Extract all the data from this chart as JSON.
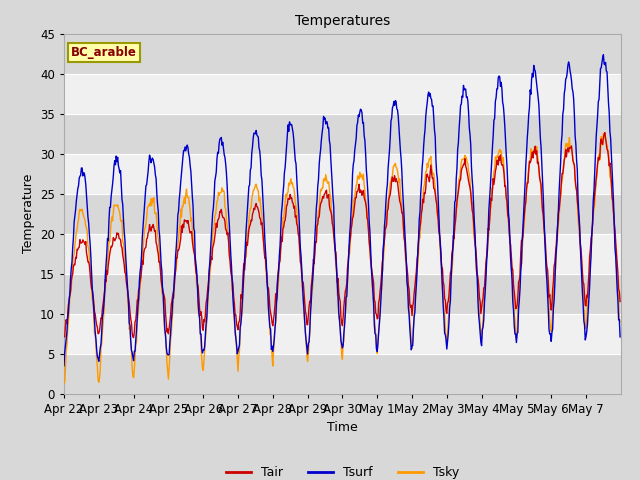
{
  "title": "Temperatures",
  "xlabel": "Time",
  "ylabel": "Temperature",
  "ylim": [
    0,
    45
  ],
  "legend_label": "BC_arable",
  "line_labels": [
    "Tair",
    "Tsurf",
    "Tsky"
  ],
  "line_colors": [
    "#cc0000",
    "#0000cc",
    "#ff9900"
  ],
  "fig_bg_color": "#d8d8d8",
  "band_color_dark": "#d8d8d8",
  "band_color_light": "#f0f0f0",
  "x_tick_labels": [
    "Apr 22",
    "Apr 23",
    "Apr 24",
    "Apr 25",
    "Apr 26",
    "Apr 27",
    "Apr 28",
    "Apr 29",
    "Apr 30",
    "May 1",
    "May 2",
    "May 3",
    "May 4",
    "May 5",
    "May 6",
    "May 7"
  ],
  "num_days": 16,
  "points_per_day": 48,
  "figsize": [
    6.4,
    4.8
  ],
  "dpi": 100
}
